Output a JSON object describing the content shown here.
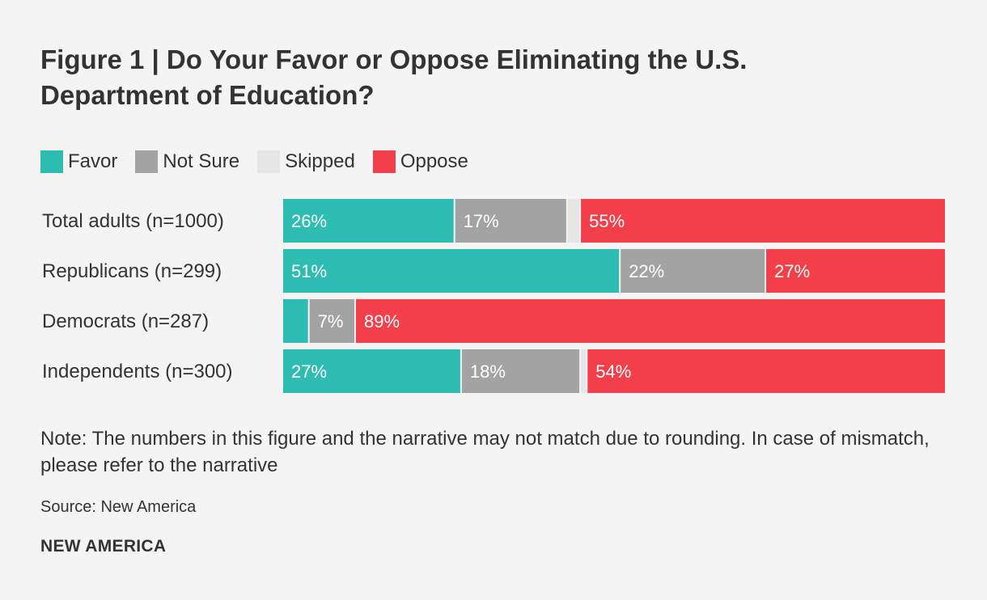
{
  "chart_data": {
    "type": "bar",
    "orientation": "horizontal",
    "stacked": true,
    "title": "Figure 1 | Do Your Favor or Oppose Eliminating the U.S. Department of Education?",
    "categories": [
      "Total adults (n=1000)",
      "Republicans (n=299)",
      "Democrats (n=287)",
      "Independents (n=300)"
    ],
    "series": [
      {
        "name": "Favor",
        "color": "#2ebdb3",
        "values": [
          26,
          51,
          4,
          27
        ],
        "labels": [
          "26%",
          "51%",
          "",
          "27%"
        ]
      },
      {
        "name": "Not Sure",
        "color": "#a3a3a3",
        "values": [
          17,
          22,
          7,
          18
        ],
        "labels": [
          "17%",
          "22%",
          "7%",
          "18%"
        ]
      },
      {
        "name": "Skipped",
        "color": "#e6e6e6",
        "values": [
          2,
          0,
          0,
          1
        ],
        "labels": [
          "",
          "",
          "",
          ""
        ]
      },
      {
        "name": "Oppose",
        "color": "#f23f4a",
        "values": [
          55,
          27,
          89,
          54
        ],
        "labels": [
          "55%",
          "27%",
          "89%",
          "54%"
        ]
      }
    ],
    "xlim": [
      0,
      100
    ],
    "legend_position": "top-left",
    "grid": false
  },
  "note": "Note: The numbers in this figure and the narrative may not match due to rounding. In case of mismatch, please refer to the narrative",
  "source": "Source: New America",
  "brand": "NEW AMERICA",
  "colors": {
    "background": "#f4f4f4",
    "text": "#333333",
    "bar_label": "#ffffff"
  }
}
